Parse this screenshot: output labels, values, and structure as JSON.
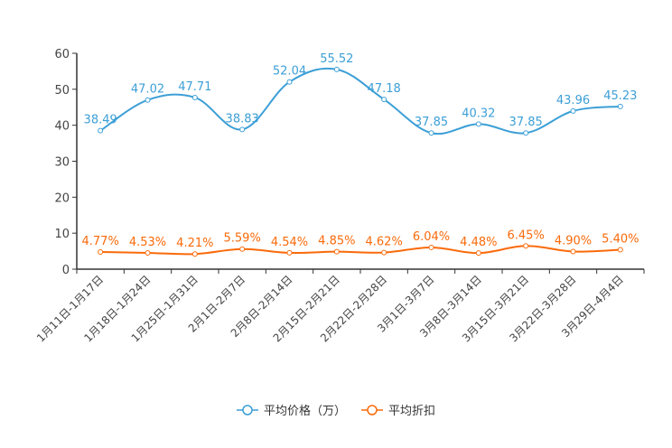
{
  "chart_data": {
    "type": "line",
    "title": "",
    "categories": [
      "1月11日-1月17日",
      "1月18日-1月24日",
      "1月25日-1月31日",
      "2月1日-2月7日",
      "2月8日-2月14日",
      "2月15日-2月21日",
      "2月22日-2月28日",
      "3月1日-3月7日",
      "3月8日-3月14日",
      "3月15日-3月21日",
      "3月22日-3月28日",
      "3月29日-4月4日"
    ],
    "ylim": [
      0,
      60
    ],
    "yticks": [
      0,
      10,
      20,
      30,
      40,
      50,
      60
    ],
    "grid": false,
    "legend_position": "bottom",
    "series": [
      {
        "name": "平均价格（万）",
        "color": "#3c9fd6",
        "values": [
          38.49,
          47.02,
          47.71,
          38.83,
          52.04,
          55.52,
          47.18,
          37.85,
          40.32,
          37.85,
          43.96,
          45.23
        ],
        "labels": [
          "38.49",
          "47.02",
          "47.71",
          "38.83",
          "52.04",
          "55.52",
          "47.18",
          "37.85",
          "40.32",
          "37.85",
          "43.96",
          "45.23"
        ]
      },
      {
        "name": "平均折扣",
        "color": "#fa6a0a",
        "values": [
          4.77,
          4.53,
          4.21,
          5.59,
          4.54,
          4.85,
          4.62,
          6.04,
          4.48,
          6.45,
          4.9,
          5.4
        ],
        "labels": [
          "4.77%",
          "4.53%",
          "4.21%",
          "5.59%",
          "4.54%",
          "4.85%",
          "4.62%",
          "6.04%",
          "4.48%",
          "6.45%",
          "4.90%",
          "5.40%"
        ]
      }
    ]
  }
}
